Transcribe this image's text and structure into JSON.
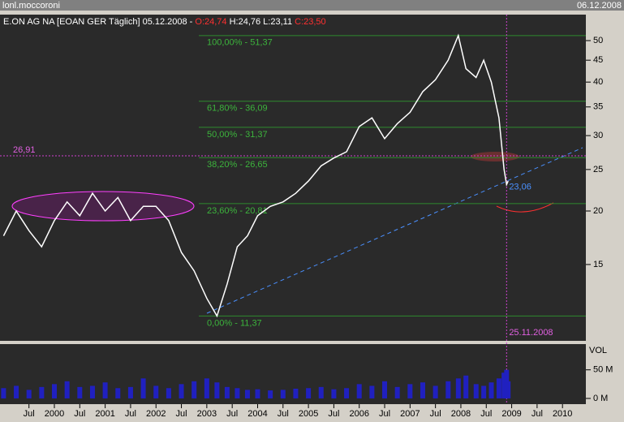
{
  "window_title": "lonl.moccoroni",
  "window_date": "06.12.2008",
  "chart_data": {
    "type": "line",
    "header": [
      {
        "text": "E.ON AG NA [EOAN GER  Täglich] 05.12.2008 - ",
        "color": "#ffffff"
      },
      {
        "text": "O:24,74",
        "color": "#ff3030"
      },
      {
        "text": " H:24,76 L:23,11 ",
        "color": "#ffffff"
      },
      {
        "text": "C:23,50",
        "color": "#ff3030"
      }
    ],
    "log_scale": true,
    "xlim": [
      1998.93,
      2010.46
    ],
    "xticks": [
      {
        "value": 1999.5,
        "label": "Jul"
      },
      {
        "value": 2000,
        "label": "2000"
      },
      {
        "value": 2000.5,
        "label": "Jul"
      },
      {
        "value": 2001,
        "label": "2001"
      },
      {
        "value": 2001.5,
        "label": "Jul"
      },
      {
        "value": 2002,
        "label": "2002"
      },
      {
        "value": 2002.5,
        "label": "Jul"
      },
      {
        "value": 2003,
        "label": "2003"
      },
      {
        "value": 2003.5,
        "label": "Jul"
      },
      {
        "value": 2004,
        "label": "2004"
      },
      {
        "value": 2004.5,
        "label": "Jul"
      },
      {
        "value": 2005,
        "label": "2005"
      },
      {
        "value": 2005.5,
        "label": "Jul"
      },
      {
        "value": 2006,
        "label": "2006"
      },
      {
        "value": 2006.5,
        "label": "Jul"
      },
      {
        "value": 2007,
        "label": "2007"
      },
      {
        "value": 2007.5,
        "label": "Jul"
      },
      {
        "value": 2008,
        "label": "2008"
      },
      {
        "value": 2008.5,
        "label": "Jul"
      },
      {
        "value": 2009,
        "label": "2009"
      },
      {
        "value": 2009.5,
        "label": "Jul"
      },
      {
        "value": 2010,
        "label": "2010"
      }
    ],
    "ylim": [
      9.95,
      57.5
    ],
    "yticks": [
      15,
      20,
      25,
      30,
      35,
      40,
      45,
      50
    ],
    "x": [
      1999.0,
      1999.25,
      1999.5,
      1999.75,
      2000.0,
      2000.25,
      2000.5,
      2000.75,
      2001.0,
      2001.25,
      2001.5,
      2001.75,
      2002.0,
      2002.25,
      2002.5,
      2002.75,
      2003.0,
      2003.2,
      2003.4,
      2003.6,
      2003.8,
      2004.0,
      2004.25,
      2004.5,
      2004.75,
      2005.0,
      2005.25,
      2005.5,
      2005.75,
      2006.0,
      2006.25,
      2006.5,
      2006.75,
      2007.0,
      2007.25,
      2007.5,
      2007.75,
      2007.95,
      2008.1,
      2008.3,
      2008.45,
      2008.6,
      2008.75,
      2008.85,
      2008.9,
      2008.93
    ],
    "series": [
      {
        "name": "E.ON AG NA",
        "color": "#ffffff",
        "values": [
          17.5,
          20,
          18,
          16.5,
          19,
          21,
          19.5,
          22,
          20,
          21.5,
          19,
          20.5,
          20.5,
          19,
          16,
          14.5,
          12.5,
          11.37,
          13.5,
          16.5,
          17.5,
          19.5,
          20.5,
          21,
          22,
          23.5,
          25.5,
          26.6,
          27.5,
          31.5,
          33,
          29.5,
          32,
          34,
          38,
          40.5,
          45,
          51.37,
          43,
          41,
          45,
          40,
          33,
          25,
          23.06,
          23.5
        ]
      }
    ],
    "volume": {
      "label": "VOL",
      "color": "#2020c0",
      "ylim": [
        -10,
        95
      ],
      "yticks": [
        {
          "value": 50,
          "label": "50 M"
        },
        {
          "value": 0,
          "label": "0 M"
        }
      ],
      "values": [
        18,
        22,
        15,
        20,
        25,
        30,
        20,
        22,
        28,
        18,
        20,
        35,
        22,
        18,
        25,
        30,
        35,
        28,
        20,
        18,
        15,
        16,
        14,
        15,
        17,
        18,
        20,
        16,
        18,
        25,
        22,
        30,
        20,
        25,
        28,
        22,
        30,
        35,
        40,
        25,
        22,
        28,
        35,
        45,
        50,
        30
      ]
    },
    "fib_levels": [
      {
        "value": 51.37,
        "label": "100,00% - 51,37"
      },
      {
        "value": 36.09,
        "label": "61,80% - 36,09"
      },
      {
        "value": 31.37,
        "label": "50,00% - 31,37"
      },
      {
        "value": 26.65,
        "label": "38,20% - 26,65"
      },
      {
        "value": 20.81,
        "label": "23,60% - 20,81"
      },
      {
        "value": 11.37,
        "label": "0,00% - 11,37"
      }
    ],
    "hline": {
      "value": 26.91,
      "label": "26,91"
    },
    "vline": {
      "value": 2008.9,
      "label": "25.11.2008"
    },
    "point_label": {
      "value": 23.06,
      "label": "23,06"
    }
  }
}
